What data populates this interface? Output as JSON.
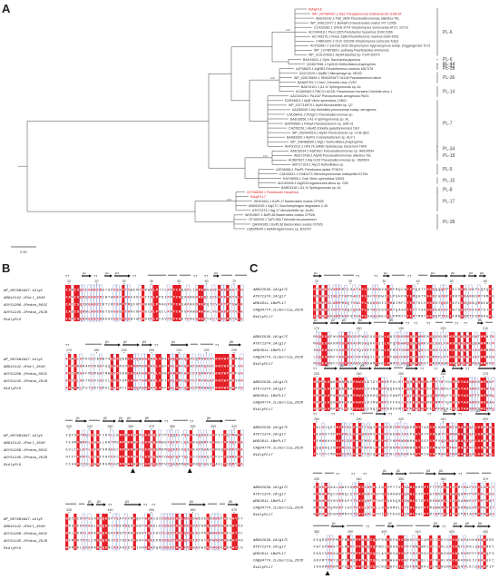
{
  "panels": {
    "a": "A",
    "b": "B",
    "c": "C"
  },
  "tree": {
    "scale_label": "0.50",
    "clades": [
      "PL-6",
      "PL-6",
      "PL-44",
      "PL-41",
      "PL-39",
      "PL-36",
      "PL-14",
      "PL-7",
      "PL-34",
      "PL-18",
      "PL-5",
      "PL-15",
      "PL-8",
      "PL-17",
      "PL-38"
    ],
    "leaves": [
      {
        "text": "RiAlyPL6",
        "hl": true
      },
      {
        "text": "WP_007984997.1 AlyC Paraglaciecola chathamensis S18K6T",
        "hl": true
      },
      {
        "text": "ABG42142.1 Patl_3640 Pseudoalteromonas atlantica T6c"
      },
      {
        "text": "WP_008122077.1 BoAlyPL6 Bacteroides ovatus VIT 12056"
      },
      {
        "text": "CCA53382.1 SVEN 2074 Streptomyces venezuelae ATCC 10712"
      },
      {
        "text": "ACO49418.1 Plexi 3225 Pedobacter heparinus DSM 2366"
      },
      {
        "text": "ACY48275.1 Rmar 1388 Rhodothermus marinus DSM 4252"
      },
      {
        "text": "CAB61820.1 OUC-SdCDB Streptomyces coelicolor A3(2)"
      },
      {
        "text": "ACF92687.1 SHJG8 3232 Streptomyces hygroscopicus subsp. jinggangensis TL01"
      },
      {
        "text": "WP_127487869.1 pathway Paenibacillus ehimensis"
      },
      {
        "text": "WP_213137828.1 AlyAA Bacillus sp. FJAT-50079"
      },
      {
        "text": "BAH19631.1 SphL Saccharina japonica"
      },
      {
        "text": "QGD67058.1 Dp0100 Defluviitalea phaphyphila"
      },
      {
        "text": "AJP38629.1 AlyRB3 Rhodothermus marinus MA7378"
      },
      {
        "text": "ASZ13229.1 AlyB6 Chitinophaga sp. MD30"
      },
      {
        "text": "WP_028728691.1 HBGDRAFT 04138 Paenibacterium latum"
      },
      {
        "text": "BAA83709.1 ChlvC Chlorella virus CVK2"
      },
      {
        "text": "BAE19101.1 A1-IV Sphingomonas sp. A1"
      },
      {
        "text": "ACA65483.2 PBCV1 A215L Paramecium bursaria Chlorella virus 1"
      },
      {
        "text": "AAO34326.1 PA1167 Pseudomonas aeruginosa PAO1"
      },
      {
        "text": "EAP94823.1 AlyB Vibrio splendidus 12B01"
      },
      {
        "text": "WP_037716979.1 AlyM Microbulbifer sp. Q7"
      },
      {
        "text": "AAZ85049.1 Aly Klebsiella pneumoniae subsp. aerogenes"
      },
      {
        "text": "CAD58401.2 PshgTC Pseudoalteromonas sp."
      },
      {
        "text": "BAD16656.1 A1-II Sphingomonas sp. A1"
      },
      {
        "text": "BAP05660.1 FlAlyA Flavobacterium sp. UMI-01"
      },
      {
        "text": "CAZ95239.1 AlyA5 Zobellia galactanivorans DsiJ"
      },
      {
        "text": "WP_052404016.1 AlyA2 Persicobacter sp. CCB-QB2"
      },
      {
        "text": "BAA83339.1 AlyPG Corynebacterium sp. ALY-1"
      },
      {
        "text": "WP_036486669.1 AlgL7 Defluviitalea phaphyphila"
      },
      {
        "text": "AHF91913.1 OR176 18480 Opitutaceae bacterium TAV5"
      },
      {
        "text": "AAD16034.1 AlyPEEC Pseudoalteromonas sp. IAM14594"
      },
      {
        "text": "ABG72436.1 AlyA5 Pseudoalteromonas atlantica T6c"
      },
      {
        "text": "ACB87837.2 Aly-SJ02 Pseudoalteromonas sp. SM0524"
      },
      {
        "text": "AMY17316.1 AlyL5 Defluviitalea sp."
      },
      {
        "text": "AJE06966.1 PanPL Pandoraea apista TF81F4"
      },
      {
        "text": "CAD45511.1 Smlt1473 Stenotrophomonas maltophilia K279a"
      },
      {
        "text": "EAY26950.1 Cwb Vibrio splendidus 12B01"
      },
      {
        "text": "ADC83305.1 Alg2025 Agarivorans albus sp. C58"
      },
      {
        "text": "BAB03318.1 A1-IV Sphingomonas sp. A1"
      },
      {
        "text": "QYG88350.1 Pedobacter heparinus",
        "hl": true
      },
      {
        "text": "RiAlyPL17",
        "hl": true
      },
      {
        "text": "WHD3611.1 BoPL17 Bacteroides ovatus CP926"
      },
      {
        "text": "ABD62539.1 Alg17C Saccharophagus degradans 2-40"
      },
      {
        "text": "AT071374.1 Alg.17 Microbulbifer sp. ALW1"
      },
      {
        "text": "WHD3607.1 BoPL38 Bacteroides ovatus CP926"
      },
      {
        "text": "OT450293.1 TpPL38A Trichoderma parareesei"
      },
      {
        "text": "QAV64185.1 BoPL38 Bacteroides ovatus CP926"
      },
      {
        "text": "UQN45040.1 AlyMA Agarivorans sp. B2Z047"
      }
    ]
  },
  "panel_b": {
    "seq_names": [
      "WP_007984997.1AlyC",
      "ABG42142.1Patl_3640",
      "ADY51208.1Pedsa_0632",
      "ADY51245.1Pedsa_2628",
      "RiAlyPL6"
    ],
    "rulers": [
      [
        "10",
        "20",
        "30",
        "40",
        "50",
        "60",
        "70"
      ],
      [
        "170",
        "180",
        "190",
        "200",
        "210",
        "220",
        "230"
      ],
      [
        "330",
        "340",
        "350",
        "360",
        "370",
        "380",
        "390",
        "400",
        "410"
      ],
      [
        "430",
        "440",
        "450",
        "460",
        "470"
      ]
    ]
  },
  "panel_c": {
    "seq_names": [
      "ABD62539.1Alg17C",
      "ATO71374.1Alg17",
      "WHD3611.1BoPL17",
      "CAQ94774.1Lobellia_2626",
      "RiAlyPL17"
    ],
    "rulers": [
      [
        "10",
        "20",
        "30",
        "40",
        "50",
        "60"
      ],
      [
        "170",
        "180",
        "190",
        "200",
        "210"
      ],
      [
        "230",
        "240",
        "250",
        "260",
        "270"
      ],
      [
        "280",
        "290",
        "300",
        "310",
        "320"
      ],
      [
        "330",
        "340",
        "350",
        "360",
        "370"
      ],
      [
        "380",
        "390",
        "400",
        "410",
        "420",
        "430"
      ]
    ]
  },
  "colors": {
    "red": "#e41b23",
    "pink": "#f6b7b7",
    "highlight": "#d22222",
    "line": "#444444"
  }
}
